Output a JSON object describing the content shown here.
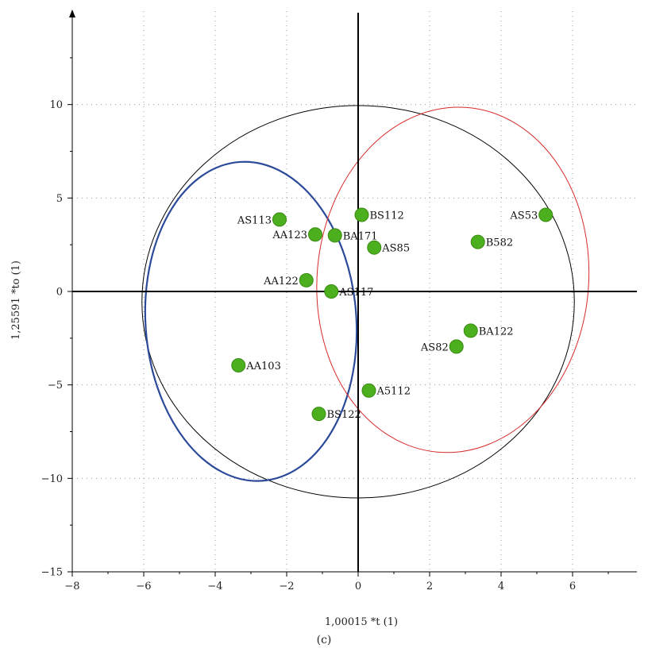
{
  "chart_data": {
    "type": "scatter",
    "xlabel": "1,00015 *t (1)",
    "ylabel": "1,25591 *to (1)",
    "xlim": [
      -8,
      7.8
    ],
    "ylim": [
      -15,
      15
    ],
    "xticks": [
      -8,
      -6,
      -4,
      -2,
      0,
      2,
      4,
      6
    ],
    "yticks": [
      -15,
      -10,
      -5,
      0,
      5,
      10
    ],
    "grid": "dotted",
    "points": [
      {
        "label": "AS113",
        "x": -2.2,
        "y": 3.85,
        "label_side": "left"
      },
      {
        "label": "AA123",
        "x": -1.2,
        "y": 3.05,
        "label_side": "left"
      },
      {
        "label": "BA171",
        "x": -0.65,
        "y": 3.0,
        "label_side": "right"
      },
      {
        "label": "BS112",
        "x": 0.1,
        "y": 4.1,
        "label_side": "right"
      },
      {
        "label": "AS85",
        "x": 0.45,
        "y": 2.35,
        "label_side": "right"
      },
      {
        "label": "AS53",
        "x": 5.25,
        "y": 4.1,
        "label_side": "left"
      },
      {
        "label": "B582",
        "x": 3.35,
        "y": 2.65,
        "label_side": "right"
      },
      {
        "label": "AA122",
        "x": -1.45,
        "y": 0.6,
        "label_side": "left"
      },
      {
        "label": "AS117",
        "x": -0.75,
        "y": 0.0,
        "label_side": "right"
      },
      {
        "label": "BA122",
        "x": 3.15,
        "y": -2.1,
        "label_side": "right"
      },
      {
        "label": "AS82",
        "x": 2.75,
        "y": -2.95,
        "label_side": "left"
      },
      {
        "label": "AA103",
        "x": -3.35,
        "y": -3.95,
        "label_side": "right"
      },
      {
        "label": "A5112",
        "x": 0.3,
        "y": -5.3,
        "label_side": "right"
      },
      {
        "label": "BS122",
        "x": -1.1,
        "y": -6.55,
        "label_side": "right"
      }
    ],
    "ellipses": [
      {
        "color": "#000000",
        "cx": 0.0,
        "cy": -0.55,
        "rx": 6.05,
        "ry": 10.5,
        "angle": 0
      },
      {
        "color": "#2b4a9a",
        "cx": -3.0,
        "cy": -1.6,
        "rx": 2.95,
        "ry": 8.55,
        "angle": -4
      },
      {
        "color": "#d62a2a",
        "cx": 2.65,
        "cy": 0.62,
        "rx": 3.8,
        "ry": 9.25,
        "angle": 5
      }
    ],
    "point_color": "#4caf1e"
  },
  "caption": "(c)"
}
